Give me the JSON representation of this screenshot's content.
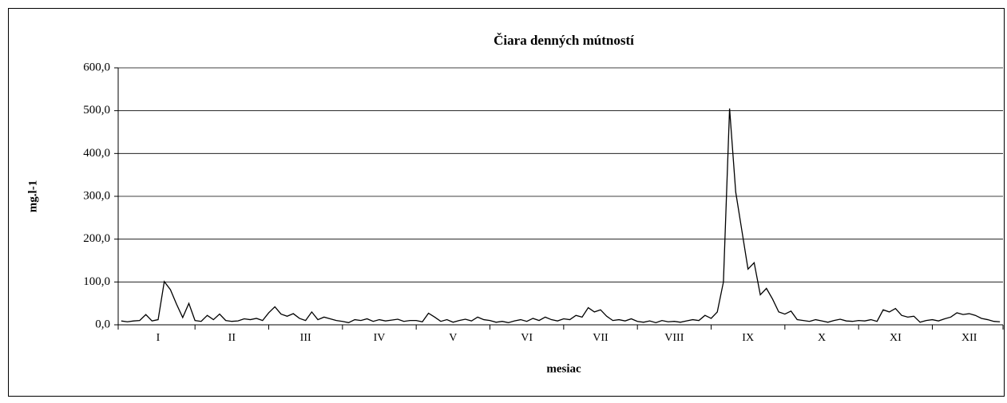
{
  "chart_data": {
    "type": "line",
    "title": "Čiara denných mútností",
    "x_label": "mesiac",
    "y_label": "mg.l-1",
    "categories": [
      null,
      null,
      null,
      null,
      null,
      null,
      "I",
      null,
      null,
      null,
      null,
      null,
      null,
      null,
      null,
      null,
      null,
      null,
      "II",
      null,
      null,
      null,
      null,
      null,
      null,
      null,
      null,
      null,
      null,
      null,
      "III",
      null,
      null,
      null,
      null,
      null,
      null,
      null,
      null,
      null,
      null,
      null,
      "IV",
      null,
      null,
      null,
      null,
      null,
      null,
      null,
      null,
      null,
      null,
      null,
      "V",
      null,
      null,
      null,
      null,
      null,
      null,
      null,
      null,
      null,
      null,
      null,
      "VI",
      null,
      null,
      null,
      null,
      null,
      null,
      null,
      null,
      null,
      null,
      null,
      "VII",
      null,
      null,
      null,
      null,
      null,
      null,
      null,
      null,
      null,
      null,
      null,
      "VIII",
      null,
      null,
      null,
      null,
      null,
      null,
      null,
      null,
      null,
      null,
      null,
      "IX",
      null,
      null,
      null,
      null,
      null,
      null,
      null,
      null,
      null,
      null,
      null,
      "X",
      null,
      null,
      null,
      null,
      null,
      null,
      null,
      null,
      null,
      null,
      null,
      "XI",
      null,
      null,
      null,
      null,
      null,
      null,
      null,
      null,
      null,
      null,
      null,
      "XII",
      null,
      null,
      null,
      null,
      null
    ],
    "series": [
      {
        "name": null,
        "color": "#000000",
        "values": [
          9,
          7,
          9,
          10,
          24,
          9,
          12,
          101,
          82,
          48,
          17,
          50,
          10,
          8,
          22,
          12,
          25,
          10,
          8,
          9,
          14,
          12,
          15,
          10,
          28,
          42,
          25,
          20,
          26,
          15,
          10,
          30,
          12,
          18,
          14,
          10,
          8,
          5,
          12,
          10,
          14,
          8,
          12,
          9,
          11,
          13,
          8,
          10,
          10,
          7,
          27,
          18,
          8,
          12,
          6,
          10,
          13,
          9,
          18,
          12,
          10,
          6,
          8,
          5,
          9,
          12,
          8,
          15,
          10,
          18,
          12,
          9,
          14,
          12,
          22,
          18,
          40,
          30,
          35,
          20,
          10,
          12,
          9,
          14,
          8,
          6,
          9,
          5,
          10,
          7,
          8,
          6,
          9,
          12,
          10,
          22,
          15,
          30,
          100,
          505,
          310,
          220,
          130,
          145,
          70,
          85,
          60,
          30,
          25,
          32,
          12,
          10,
          8,
          12,
          9,
          6,
          10,
          13,
          9,
          8,
          10,
          9,
          12,
          8,
          35,
          30,
          38,
          22,
          18,
          20,
          6,
          10,
          12,
          9,
          14,
          18,
          28,
          24,
          26,
          22,
          15,
          12,
          8,
          7
        ]
      }
    ],
    "ylim": [
      0,
      600
    ],
    "yticks": [
      {
        "value": 0,
        "label": "0,0"
      },
      {
        "value": 100,
        "label": "100,0"
      },
      {
        "value": 200,
        "label": "200,0"
      },
      {
        "value": 300,
        "label": "300,0"
      },
      {
        "value": 400,
        "label": "400,0"
      },
      {
        "value": 500,
        "label": "500,0"
      },
      {
        "value": 600,
        "label": "600,0"
      }
    ],
    "grid": true
  }
}
